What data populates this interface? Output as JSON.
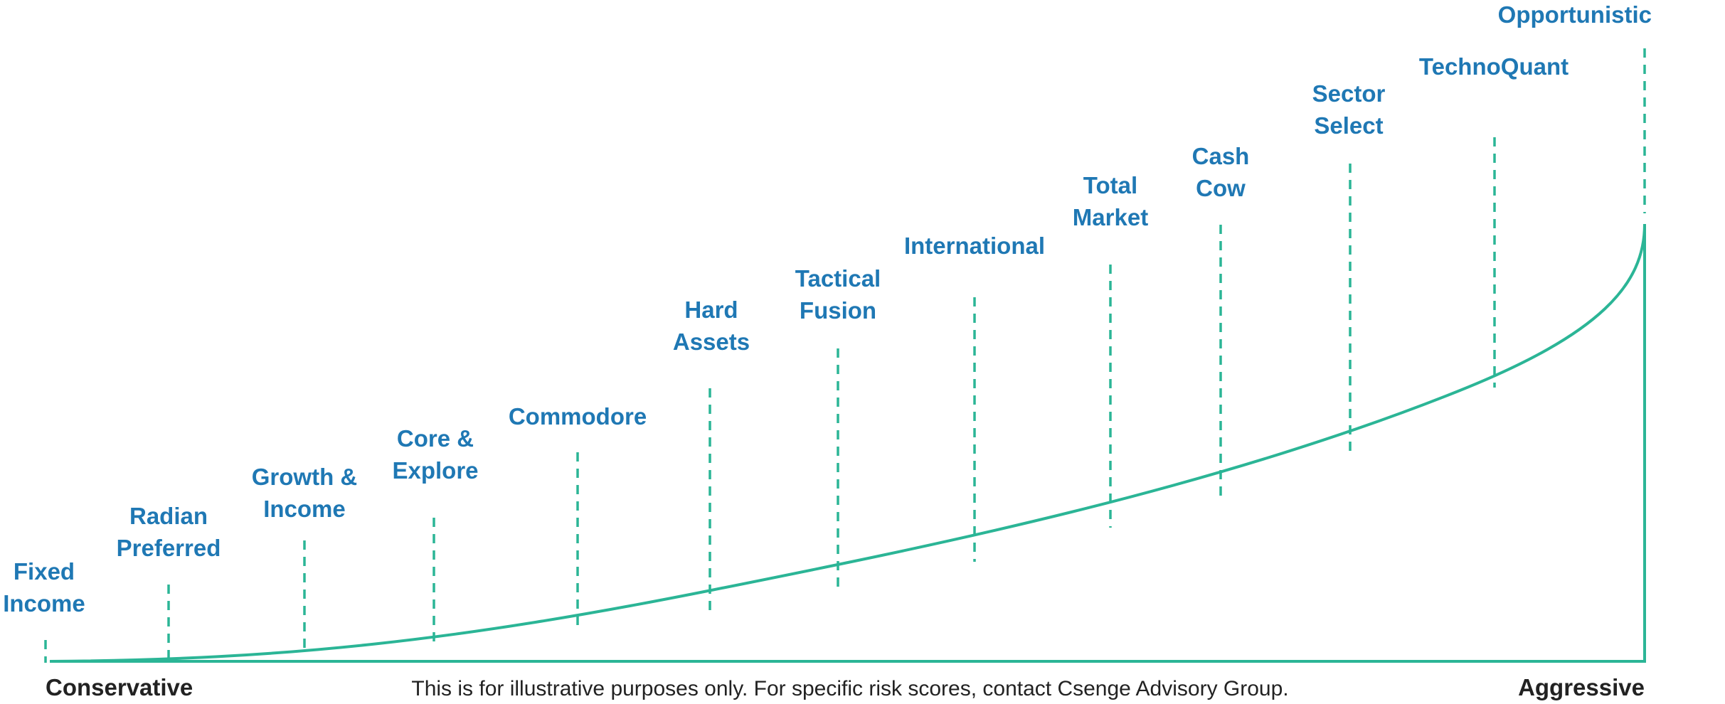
{
  "colors": {
    "curve": "#2bb596",
    "label": "#1f78b4",
    "text": "#222222"
  },
  "strategies": [
    {
      "lines": [
        "Fixed",
        "Income"
      ]
    },
    {
      "lines": [
        "Radian",
        "Preferred"
      ]
    },
    {
      "lines": [
        "Growth &",
        "Income"
      ]
    },
    {
      "lines": [
        "Core &",
        "Explore"
      ]
    },
    {
      "lines": [
        "Commodore"
      ]
    },
    {
      "lines": [
        "Hard",
        "Assets"
      ]
    },
    {
      "lines": [
        "Tactical",
        "Fusion"
      ]
    },
    {
      "lines": [
        "International"
      ]
    },
    {
      "lines": [
        "Total",
        "Market"
      ]
    },
    {
      "lines": [
        "Cash",
        "Cow"
      ]
    },
    {
      "lines": [
        "Sector",
        "Select"
      ]
    },
    {
      "lines": [
        "TechnoQuant"
      ]
    },
    {
      "lines": [
        "Opportunistic"
      ]
    }
  ],
  "footer": {
    "left_label": "Conservative",
    "right_label": "Aggressive",
    "disclaimer": "This is for illustrative purposes only. For specific risk scores, contact Csenge Advisory Group."
  }
}
